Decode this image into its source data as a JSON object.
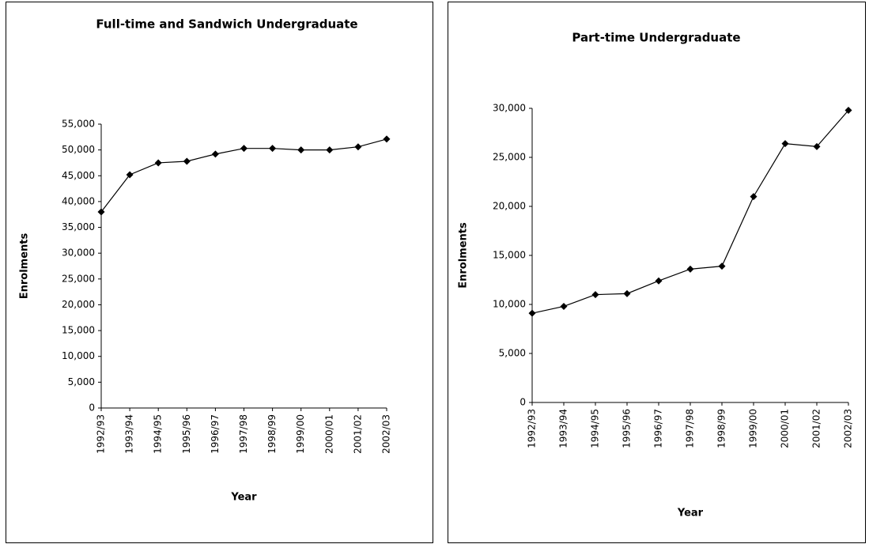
{
  "chart_data": [
    {
      "type": "line",
      "title": "Full-time and Sandwich Undergraduate",
      "x_label": "Year",
      "y_label": "Enrolments",
      "categories": [
        "1992/93",
        "1993/94",
        "1994/95",
        "1995/96",
        "1996/97",
        "1997/98",
        "1998/99",
        "1999/00",
        "2000/01",
        "2001/02",
        "2002/03"
      ],
      "series": [
        {
          "name": "Full-time and Sandwich Undergraduate",
          "color": "#000000",
          "values": [
            38000,
            45200,
            47500,
            47800,
            49200,
            50300,
            50300,
            50000,
            50000,
            50600,
            52100
          ]
        }
      ],
      "ylim": [
        0,
        55000
      ],
      "yticks": [
        0,
        {
          "value": 5000,
          "label": "5,000"
        },
        {
          "value": 10000,
          "label": "10,000"
        },
        {
          "value": 15000,
          "label": "15,000"
        },
        {
          "value": 20000,
          "label": "20,000"
        },
        {
          "value": 25000,
          "label": "25,000"
        },
        {
          "value": 30000,
          "label": "30,000"
        },
        {
          "value": 35000,
          "label": "35,000"
        },
        {
          "value": 40000,
          "label": "40,000"
        },
        {
          "value": 45000,
          "label": "45,000"
        },
        {
          "value": 50000,
          "label": "50,000"
        },
        {
          "value": 55000,
          "label": "55,000"
        }
      ],
      "grid": false
    },
    {
      "type": "line",
      "title": "Part-time Undergraduate",
      "x_label": "Year",
      "y_label": "Enrolments",
      "categories": [
        "1992/93",
        "1993/94",
        "1994/95",
        "1995/96",
        "1996/97",
        "1997/98",
        "1998/99",
        "1999/00",
        "2000/01",
        "2001/02",
        "2002/03"
      ],
      "series": [
        {
          "name": "Part-time Undergraduate",
          "color": "#000000",
          "values": [
            9100,
            9800,
            11000,
            11100,
            12400,
            13600,
            13900,
            21000,
            26400,
            26100,
            29800
          ]
        }
      ],
      "ylim": [
        0,
        30000
      ],
      "yticks": [
        0,
        {
          "value": 5000,
          "label": "5,000"
        },
        {
          "value": 10000,
          "label": "10,000"
        },
        {
          "value": 15000,
          "label": "15,000"
        },
        {
          "value": 20000,
          "label": "20,000"
        },
        {
          "value": 25000,
          "label": "25,000"
        },
        {
          "value": 30000,
          "label": "30,000"
        }
      ],
      "grid": false
    }
  ]
}
